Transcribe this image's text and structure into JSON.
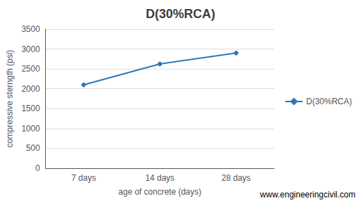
{
  "chart_data": {
    "type": "line",
    "title": "D(30%RCA)",
    "categories": [
      "7 days",
      "14 days",
      "28 days"
    ],
    "series": [
      {
        "name": "D(30%RCA)",
        "color": "#2E75B6",
        "marker": "diamond",
        "values": [
          2100,
          2625,
          2900
        ]
      }
    ],
    "xlabel": "age of concrete (days)",
    "ylabel": "compressive sterngth (psi)",
    "ylim": [
      0,
      3500
    ],
    "yticks": [
      0,
      500,
      1000,
      1500,
      2000,
      2500,
      3000,
      3500
    ],
    "grid": true,
    "legend": "right",
    "annotations": [
      "www.engineeringcivil.com"
    ]
  }
}
